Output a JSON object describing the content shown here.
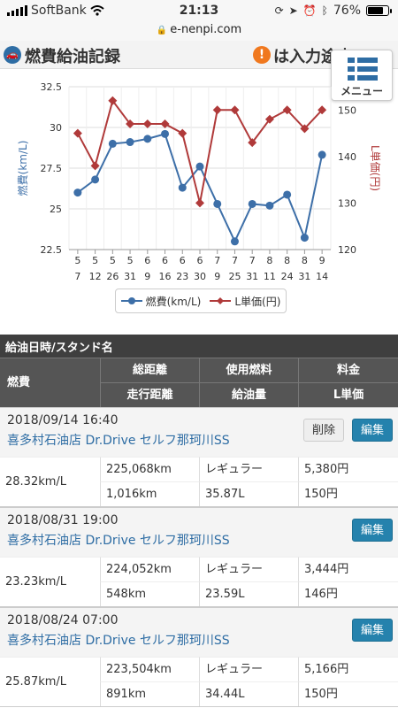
{
  "status_bar": {
    "carrier": "SoftBank",
    "time": "21:13",
    "battery": "76%",
    "battery_level": 0.76
  },
  "browser": {
    "url": "e-nenpi.com"
  },
  "header": {
    "logo_icon": "car-icon",
    "title": "燃費給油記録",
    "notice_icon": "info-icon",
    "notice": "は入力途中"
  },
  "menu": {
    "label": "メニュー"
  },
  "chart_data": {
    "type": "line",
    "categories": [
      [
        "5",
        "7"
      ],
      [
        "5",
        "12"
      ],
      [
        "5",
        "26"
      ],
      [
        "5",
        "31"
      ],
      [
        "6",
        "9"
      ],
      [
        "6",
        "16"
      ],
      [
        "6",
        "23"
      ],
      [
        "6",
        "30"
      ],
      [
        "7",
        "9"
      ],
      [
        "7",
        "25"
      ],
      [
        "7",
        "31"
      ],
      [
        "8",
        "11"
      ],
      [
        "8",
        "24"
      ],
      [
        "8",
        "31"
      ],
      [
        "9",
        "14"
      ]
    ],
    "series": [
      {
        "name": "燃費(km/L)",
        "axis": "left",
        "color": "#3d6fa8",
        "marker": "circle",
        "values": [
          26.0,
          26.8,
          29.0,
          29.1,
          29.3,
          29.6,
          26.3,
          27.6,
          25.3,
          23.0,
          25.3,
          25.2,
          25.87,
          23.23,
          28.32
        ]
      },
      {
        "name": "L単価(円)",
        "axis": "right",
        "color": "#b03a3a",
        "marker": "diamond",
        "values": [
          145,
          138,
          152,
          147,
          147,
          147,
          145,
          130,
          150,
          150,
          143,
          148,
          150,
          146,
          150
        ]
      }
    ],
    "ylabel_left": "燃費(km/L)",
    "ylabel_right": "L単価(円)",
    "yticks_left": [
      "32.5",
      "30",
      "27.5",
      "25",
      "22.5"
    ],
    "yticks_right": [
      "150",
      "140",
      "130",
      "120"
    ],
    "ylim_left": [
      22.5,
      32.5
    ],
    "ylim_right": [
      120,
      155
    ],
    "grid": true,
    "legend": "bottom"
  },
  "table": {
    "header_title": "給油日時/スタンド名",
    "col_efficiency": "燃費",
    "col_total_distance": "総距離",
    "col_fuel_type": "使用燃料",
    "col_price": "料金",
    "col_trip_distance": "走行距離",
    "col_amount": "給油量",
    "col_unit_price": "L単価"
  },
  "buttons": {
    "delete": "削除",
    "edit": "編集"
  },
  "records": [
    {
      "datetime": "2018/09/14 16:40",
      "station": "喜多村石油店 Dr.Drive セルフ那珂川SS",
      "efficiency": "28.32km/L",
      "total_distance": "225,068km",
      "fuel_type": "レギュラー",
      "price": "5,380円",
      "trip_distance": "1,016km",
      "amount": "35.87L",
      "unit_price": "150円",
      "deletable": true
    },
    {
      "datetime": "2018/08/31 19:00",
      "station": "喜多村石油店 Dr.Drive セルフ那珂川SS",
      "efficiency": "23.23km/L",
      "total_distance": "224,052km",
      "fuel_type": "レギュラー",
      "price": "3,444円",
      "trip_distance": "548km",
      "amount": "23.59L",
      "unit_price": "146円",
      "deletable": false
    },
    {
      "datetime": "2018/08/24 07:00",
      "station": "喜多村石油店 Dr.Drive セルフ那珂川SS",
      "efficiency": "25.87km/L",
      "total_distance": "223,504km",
      "fuel_type": "レギュラー",
      "price": "5,166円",
      "trip_distance": "891km",
      "amount": "34.44L",
      "unit_price": "150円",
      "deletable": false
    }
  ]
}
